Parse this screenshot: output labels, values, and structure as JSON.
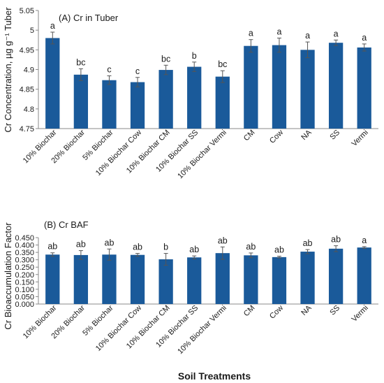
{
  "figure": {
    "xlabel": "Soil Treatments"
  },
  "chart_data": [
    {
      "type": "bar",
      "title": "(A) Cr in Tuber",
      "ylabel": "Cr Concentration, µg g⁻¹ Tuber",
      "ylim": [
        4.75,
        5.05
      ],
      "yticks": [
        "4.75",
        "4.8",
        "4.85",
        "4.9",
        "4.95",
        "5",
        "5.05"
      ],
      "categories": [
        "10% Biochar",
        "20% Biochar",
        "5% Biochar",
        "10% Biochar Cow",
        "10% Biochar CM",
        "10% Biochar SS",
        "10% Biochar Vermi",
        "CM",
        "Cow",
        "NA",
        "SS",
        "Vermi"
      ],
      "values": [
        4.98,
        4.887,
        4.873,
        4.868,
        4.899,
        4.907,
        4.882,
        4.96,
        4.962,
        4.95,
        4.968,
        4.956
      ],
      "errors": [
        0.015,
        0.015,
        0.011,
        0.012,
        0.012,
        0.012,
        0.015,
        0.016,
        0.018,
        0.02,
        0.007,
        0.009
      ],
      "significance": [
        "a",
        "bc",
        "c",
        "c",
        "bc",
        "b",
        "bc",
        "a",
        "a",
        "a",
        "a",
        "a"
      ],
      "color": "#1a5a9a",
      "grid": false
    },
    {
      "type": "bar",
      "title": "(B) Cr BAF",
      "ylabel": "Cr Bioaccumulation Factor",
      "ylim": [
        0.0,
        0.45
      ],
      "yticks": [
        "0.000",
        "0.050",
        "0.100",
        "0.150",
        "0.200",
        "0.250",
        "0.300",
        "0.350",
        "0.400",
        "0.450"
      ],
      "categories": [
        "10% Biochar",
        "20% Biochar",
        "5% Biochar",
        "10% Biochar Cow",
        "10% Biochar CM",
        "10% Biochar SS",
        "10% Biochar Vermi",
        "CM",
        "Cow",
        "NA",
        "SS",
        "Vermi"
      ],
      "values": [
        0.335,
        0.332,
        0.335,
        0.333,
        0.303,
        0.316,
        0.345,
        0.33,
        0.318,
        0.355,
        0.375,
        0.383
      ],
      "errors": [
        0.012,
        0.03,
        0.038,
        0.01,
        0.04,
        0.01,
        0.042,
        0.016,
        0.006,
        0.014,
        0.02,
        0.006
      ],
      "significance": [
        "ab",
        "ab",
        "ab",
        "ab",
        "b",
        "ab",
        "ab",
        "ab",
        "ab",
        "ab",
        "ab",
        "a"
      ],
      "color": "#1a5a9a",
      "grid": false
    }
  ]
}
